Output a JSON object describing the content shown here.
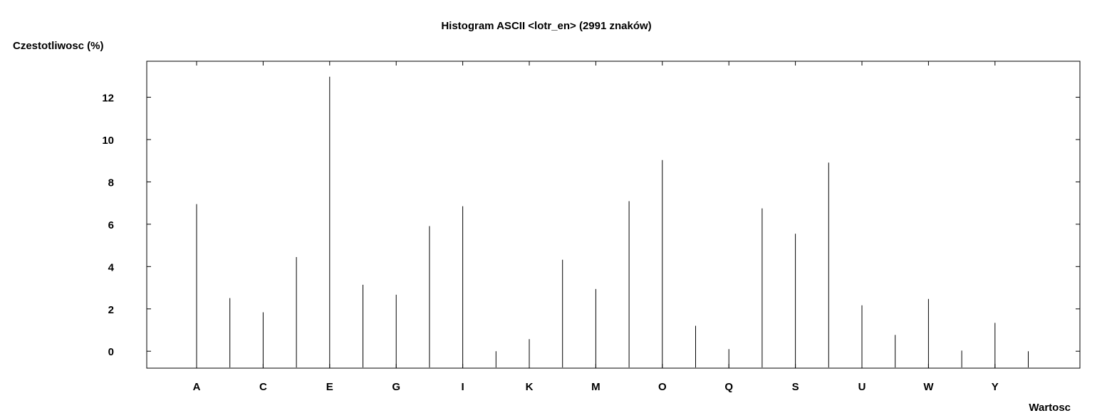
{
  "chart_data": {
    "type": "bar",
    "title": "Histogram ASCII <lotr_en> (2991 znaków)",
    "ylabel": "Czestotliwosc (%)",
    "xlabel": "Wartosc",
    "categories": [
      "A",
      "B",
      "C",
      "D",
      "E",
      "F",
      "G",
      "H",
      "I",
      "J",
      "K",
      "L",
      "M",
      "N",
      "O",
      "P",
      "Q",
      "R",
      "S",
      "T",
      "U",
      "V",
      "W",
      "X",
      "Y",
      "Z"
    ],
    "x_tick_labels": [
      "A",
      "C",
      "E",
      "G",
      "I",
      "K",
      "M",
      "O",
      "Q",
      "S",
      "U",
      "W",
      "Y"
    ],
    "values": [
      6.95,
      2.51,
      1.84,
      4.45,
      12.97,
      3.14,
      2.67,
      5.91,
      6.85,
      0.0,
      0.57,
      4.32,
      2.94,
      7.09,
      9.03,
      1.2,
      0.1,
      6.75,
      5.55,
      8.91,
      2.17,
      0.77,
      2.47,
      0.03,
      1.34,
      0.0
    ],
    "ylim": [
      -0.8,
      13.7
    ],
    "yticks": [
      0,
      2,
      4,
      6,
      8,
      10,
      12
    ],
    "grid": false,
    "color": "#000000"
  }
}
